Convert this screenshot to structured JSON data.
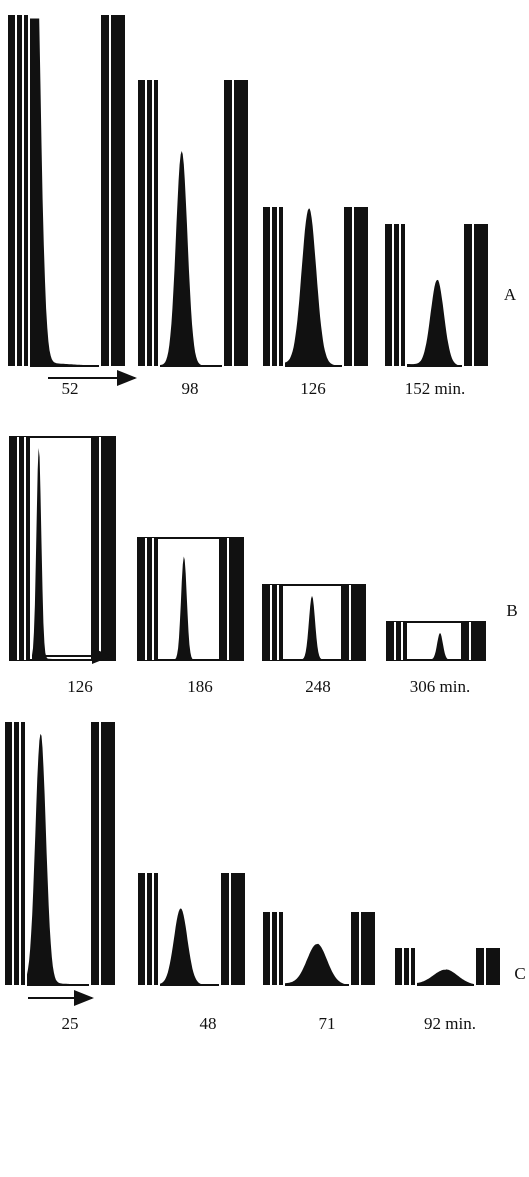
{
  "panels": [
    {
      "label": "A",
      "frames": [
        {
          "time": "52"
        },
        {
          "time": "98"
        },
        {
          "time": "126"
        },
        {
          "time": "152 min."
        }
      ]
    },
    {
      "label": "B",
      "frames": [
        {
          "time": "126"
        },
        {
          "time": "186"
        },
        {
          "time": "248"
        },
        {
          "time": "306 min."
        }
      ]
    },
    {
      "label": "C",
      "frames": [
        {
          "time": "25"
        },
        {
          "time": "48"
        },
        {
          "time": "71"
        },
        {
          "time": "92 min."
        }
      ]
    }
  ]
}
